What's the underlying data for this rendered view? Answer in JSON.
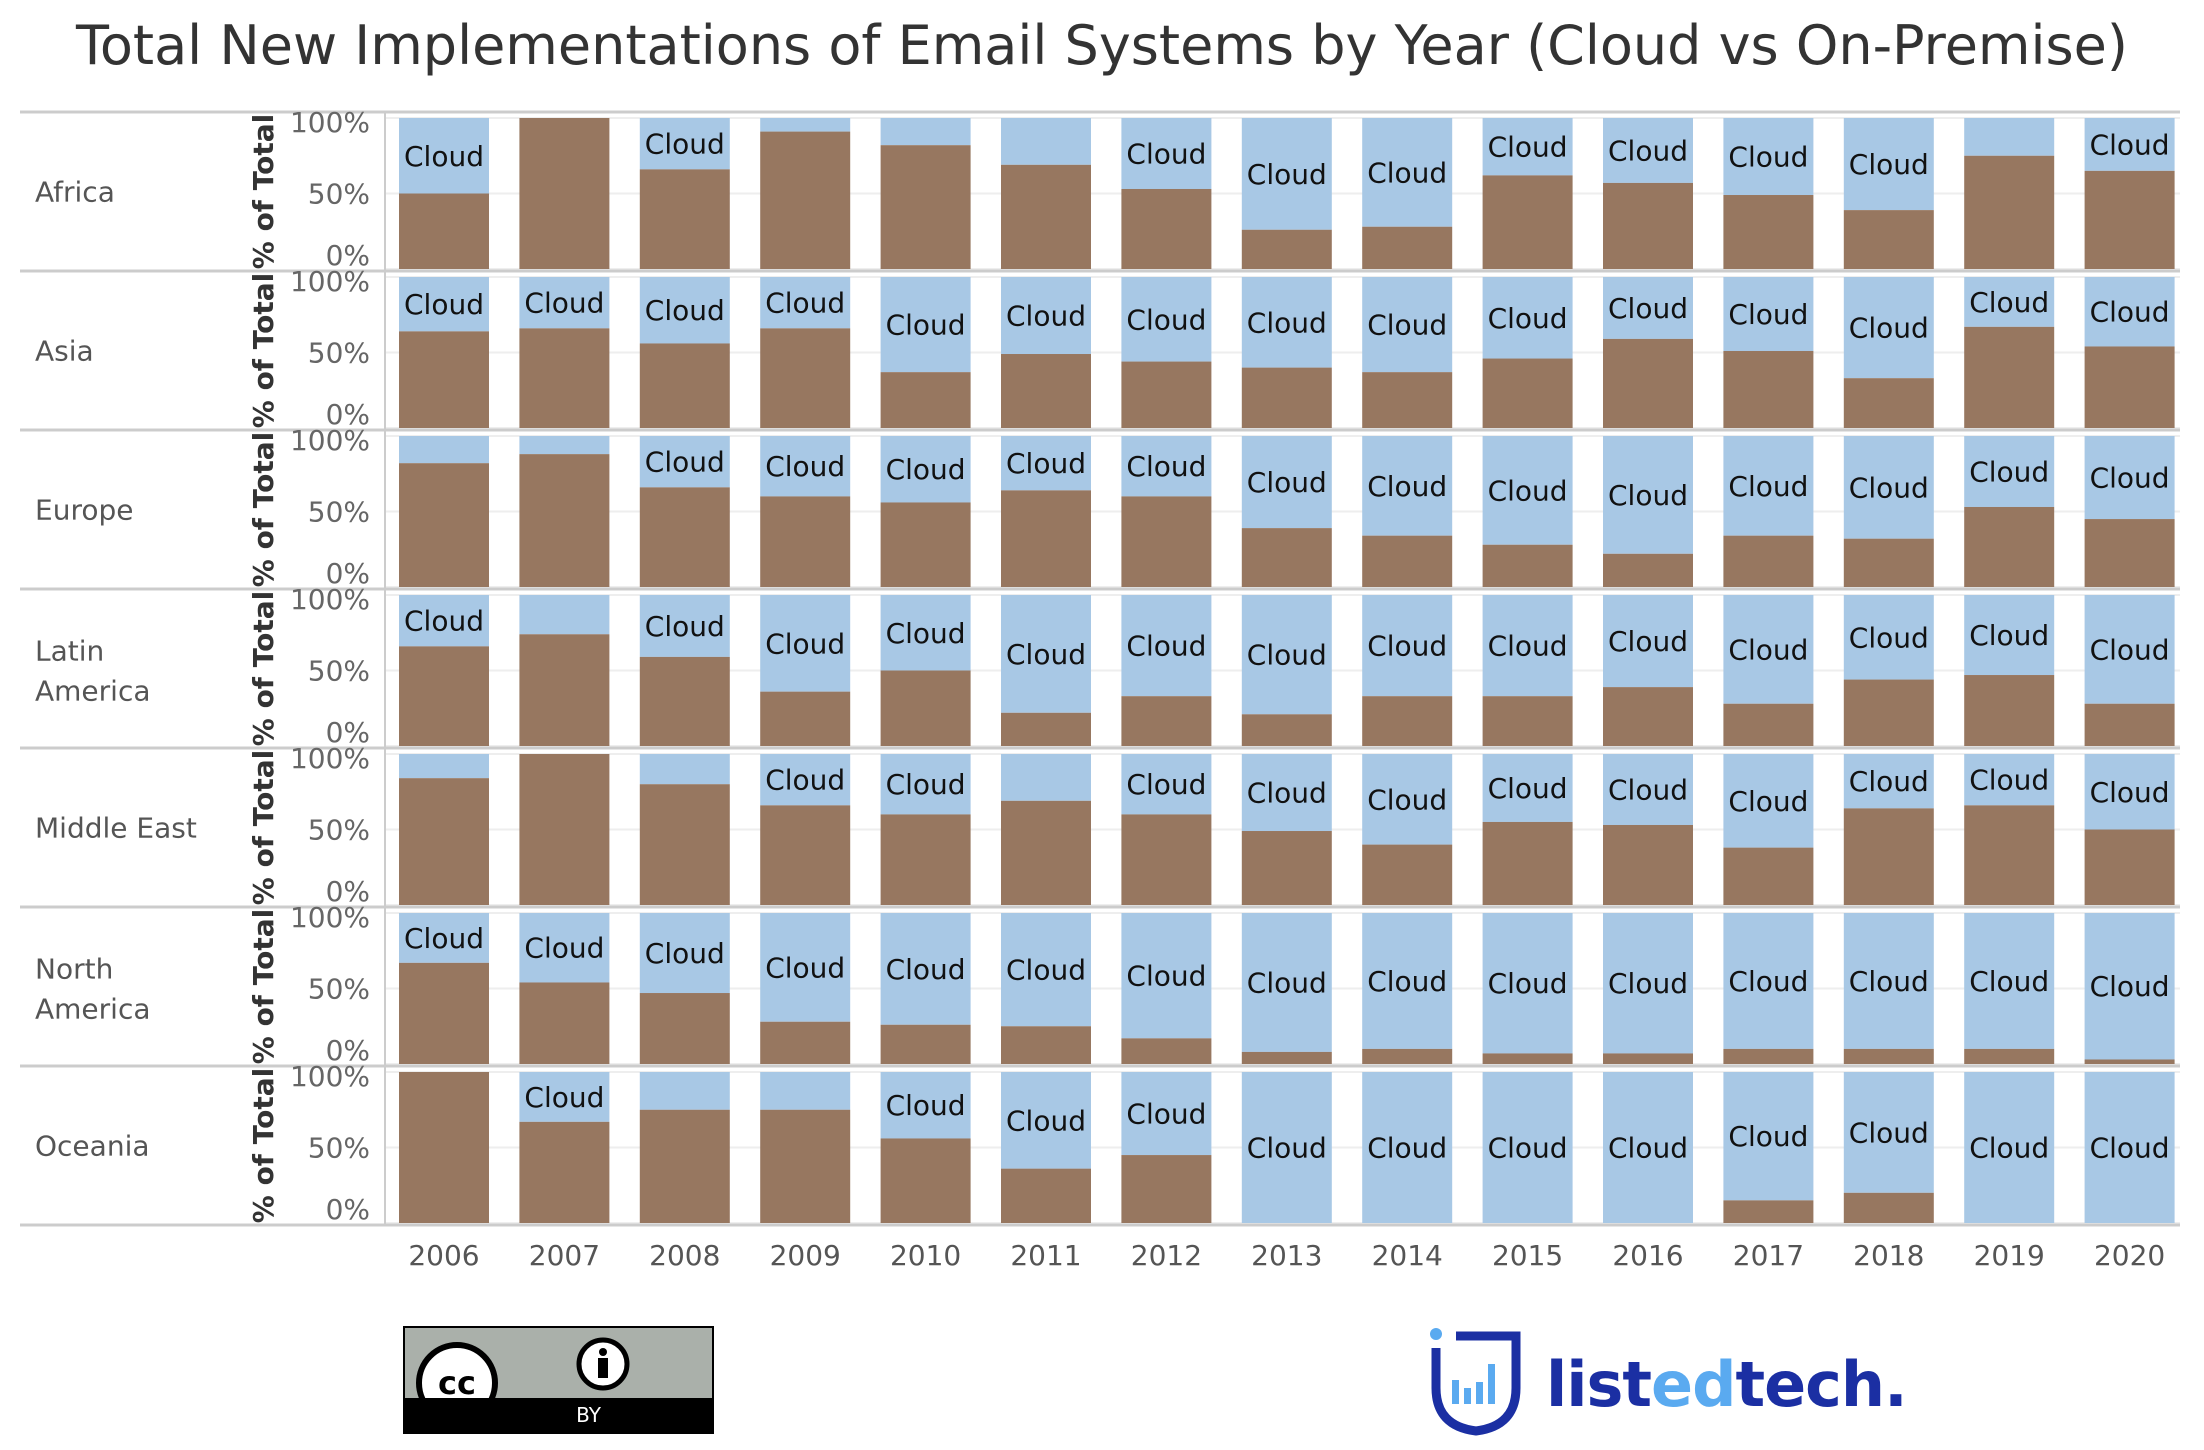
{
  "chart_data": {
    "type": "bar",
    "stacked": "100%",
    "title": "Total New Implementations of Email Systems by Year (Cloud vs On-Premise)",
    "ylabel": "% of Total",
    "yticks": [
      "100%",
      "50%",
      "0%"
    ],
    "ylim": [
      0,
      100
    ],
    "categories": [
      "2006",
      "2007",
      "2008",
      "2009",
      "2010",
      "2011",
      "2012",
      "2013",
      "2014",
      "2015",
      "2016",
      "2017",
      "2018",
      "2019",
      "2020"
    ],
    "segment_label": "Cloud",
    "colors": {
      "on_premise": "#977760",
      "cloud": "#a8c8e5"
    },
    "note_values": "on-premise share (%) per year; cloud = 100 - value",
    "panels": [
      {
        "region": "Africa",
        "on_premise": [
          50,
          100,
          66,
          91,
          82,
          69,
          53,
          26,
          28,
          62,
          57,
          49,
          39,
          75,
          65
        ]
      },
      {
        "region": "Asia",
        "on_premise": [
          64,
          66,
          56,
          66,
          37,
          49,
          44,
          40,
          37,
          46,
          59,
          51,
          33,
          67,
          54
        ]
      },
      {
        "region": "Europe",
        "on_premise": [
          82,
          88,
          66,
          60,
          56,
          64,
          60,
          39,
          34,
          28,
          22,
          34,
          32,
          53,
          45
        ]
      },
      {
        "region": "Latin America",
        "on_premise": [
          66,
          74,
          59,
          36,
          50,
          22,
          33,
          21,
          33,
          33,
          39,
          28,
          44,
          47,
          28
        ]
      },
      {
        "region": "Middle East",
        "on_premise": [
          84,
          100,
          80,
          66,
          60,
          69,
          60,
          49,
          40,
          55,
          53,
          38,
          64,
          66,
          50
        ]
      },
      {
        "region": "North America",
        "on_premise": [
          67,
          54,
          47,
          28,
          26,
          25,
          17,
          8,
          10,
          7,
          7,
          10,
          10,
          10,
          3
        ]
      },
      {
        "region": "Oceania",
        "on_premise": [
          100,
          67,
          75,
          75,
          56,
          36,
          45,
          0,
          0,
          0,
          0,
          15,
          20,
          0,
          0
        ]
      }
    ],
    "grid": true
  },
  "logos": {
    "cc": {
      "text": "cc",
      "by": "BY"
    },
    "brand": {
      "pre": "list",
      "mid": "ed",
      "post": "tech."
    }
  }
}
